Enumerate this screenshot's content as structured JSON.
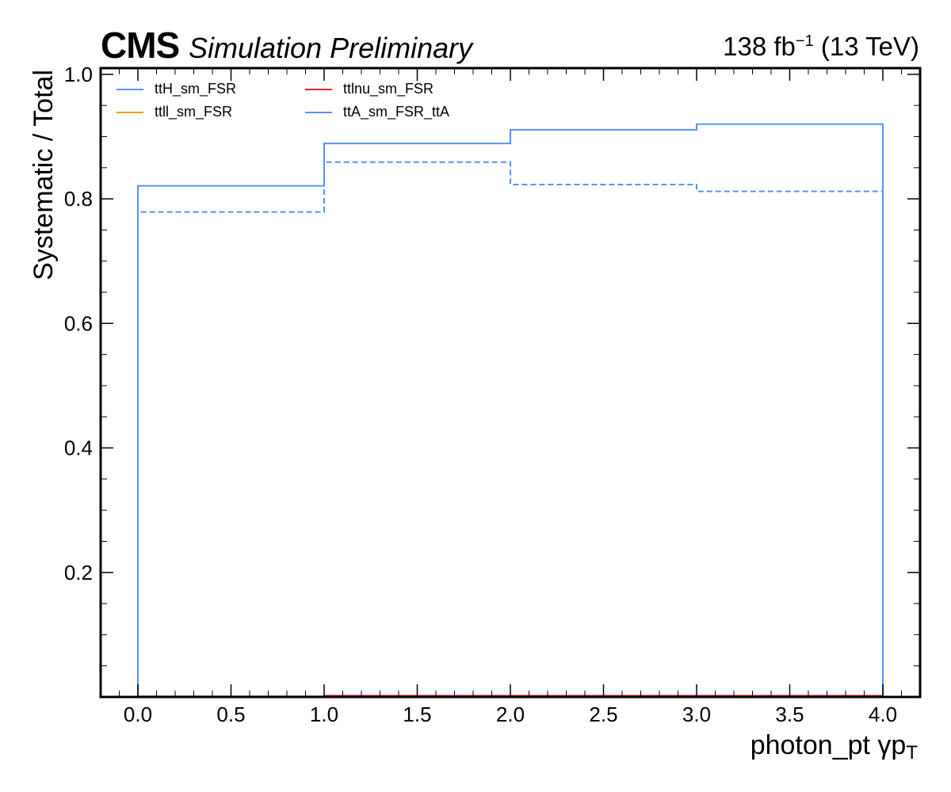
{
  "header": {
    "experiment": "CMS",
    "extra": "Simulation Preliminary",
    "lumi_value": "138 fb",
    "lumi_exp": "−1",
    "lumi_energy": " (13 TeV)"
  },
  "chart_data": {
    "type": "line",
    "drawstyle": "steps",
    "xlabel": "photon_pt    γp",
    "xlabel_sub": "T",
    "ylabel": "Systematic / Total",
    "xlim": [
      -0.2,
      4.2
    ],
    "ylim": [
      0.0,
      1.01
    ],
    "x_ticks": [
      "0.0",
      "0.5",
      "1.0",
      "1.5",
      "2.0",
      "2.5",
      "3.0",
      "3.5",
      "4.0"
    ],
    "y_ticks": [
      "0.2",
      "0.4",
      "0.6",
      "0.8",
      "1.0"
    ],
    "bin_edges": [
      0,
      1,
      2,
      3,
      4
    ],
    "grid": false,
    "legend_position": "top-left",
    "legend_columns": 2,
    "series": [
      {
        "name": "ttH_sm_FSR",
        "color": "#5790fc",
        "style": "solid",
        "values": [
          0.0,
          0.0,
          0.0,
          0.0
        ]
      },
      {
        "name": "ttll_sm_FSR",
        "color": "#f89c20",
        "style": "solid",
        "values": [
          0.0,
          0.0,
          0.0,
          0.0
        ]
      },
      {
        "name": "ttlnu_sm_FSR",
        "color": "#e42536",
        "style": "solid",
        "values": [
          0.001,
          0.002,
          0.002,
          0.002
        ]
      },
      {
        "name": "ttA_sm_FSR_ttA",
        "color": "#5790fc",
        "style": "solid",
        "values": [
          0.821,
          0.889,
          0.911,
          0.92
        ]
      },
      {
        "name": "",
        "color": "#5790fc",
        "style": "dashed",
        "values": [
          0.779,
          0.859,
          0.823,
          0.812
        ]
      }
    ]
  }
}
